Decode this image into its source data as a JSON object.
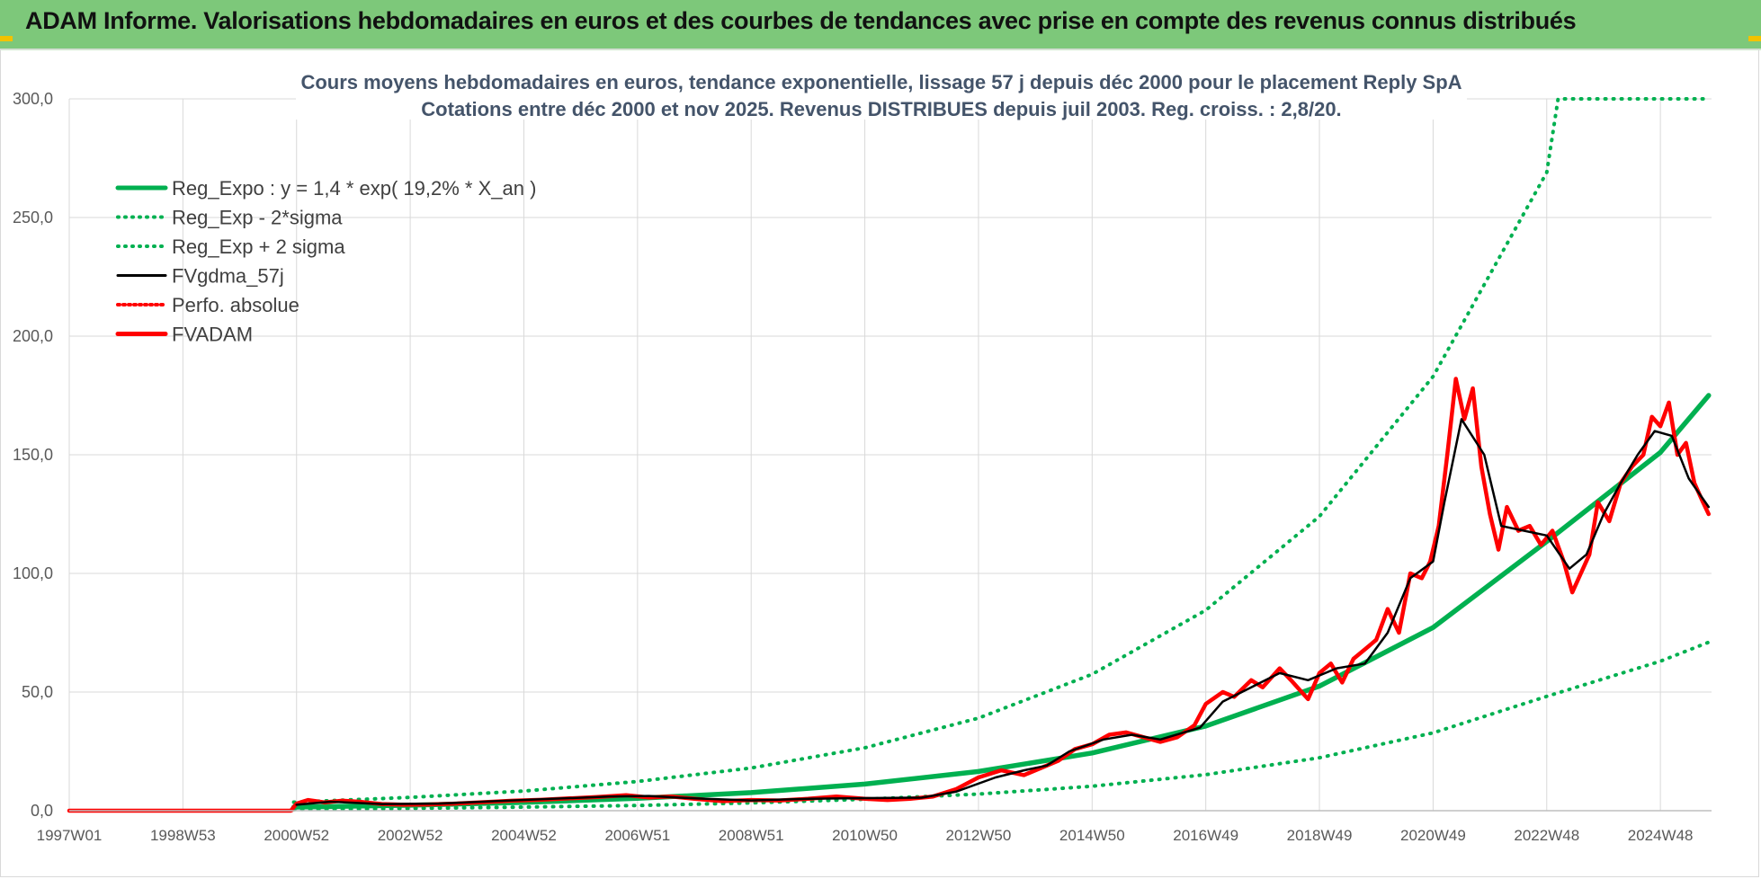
{
  "header": {
    "title": "ADAM Informe. Valorisations hebdomadaires en euros et des courbes de tendances avec prise en compte des revenus connus distribués"
  },
  "colors": {
    "header_bg": "#7dc87a",
    "green": "#00b050",
    "red": "#ff0000",
    "black": "#000000",
    "grid": "#d9d9d9",
    "title": "#44546a"
  },
  "chart_data": {
    "type": "line",
    "title_line1": "Cours moyens hebdomadaires en euros, tendance exponentielle, lissage 57 j depuis déc 2000 pour le placement Reply SpA",
    "title_line2": "Cotations entre déc 2000 et nov 2025. Revenus DISTRIBUES depuis juil 2003. Reg. croiss. : 2,8/20.",
    "ylim": [
      0,
      300
    ],
    "xlim": [
      1997.0,
      2025.9
    ],
    "y_ticks": [
      0,
      50,
      100,
      150,
      200,
      250,
      300
    ],
    "y_tick_labels": [
      "0,0",
      "50,0",
      "100,0",
      "150,0",
      "200,0",
      "250,0",
      "300,0"
    ],
    "x_tick_values": [
      1997.0,
      1999.0,
      2001.0,
      2003.0,
      2005.0,
      2007.0,
      2009.0,
      2011.0,
      2013.0,
      2015.0,
      2017.0,
      2019.0,
      2021.0,
      2023.0,
      2025.0
    ],
    "x_tick_labels": [
      "1997W01",
      "1998W53",
      "2000W52",
      "2002W52",
      "2004W52",
      "2006W51",
      "2008W51",
      "2010W50",
      "2012W50",
      "2014W50",
      "2016W49",
      "2018W49",
      "2020W49",
      "2022W48",
      "2024W48"
    ],
    "legend": [
      {
        "name": "Reg_Expo : y = 1,4 * exp( 19,2% *  X_an )",
        "color": "#00b050",
        "style": "solid-thick"
      },
      {
        "name": "Reg_Exp - 2*sigma",
        "color": "#00b050",
        "style": "dotted"
      },
      {
        "name": "Reg_Exp + 2 sigma",
        "color": "#00b050",
        "style": "dotted"
      },
      {
        "name": "FVgdma_57j",
        "color": "#000000",
        "style": "solid"
      },
      {
        "name": "Perfo. absolue",
        "color": "#ff0000",
        "style": "dotted"
      },
      {
        "name": "FVADAM",
        "color": "#ff0000",
        "style": "solid-thick"
      }
    ],
    "series": [
      {
        "name": "Reg_Expo",
        "x": [
          2000.95,
          2003,
          2005,
          2007,
          2009,
          2011,
          2013,
          2015,
          2017,
          2019,
          2021,
          2023,
          2025,
          2025.85
        ],
        "values": [
          1.5,
          2.3,
          3.5,
          5.2,
          7.6,
          11.2,
          16.5,
          24.3,
          35.7,
          52.5,
          77.2,
          113.5,
          151.0,
          175.0
        ]
      },
      {
        "name": "Reg_Exp - 2*sigma",
        "x": [
          2000.95,
          2003,
          2005,
          2007,
          2009,
          2011,
          2013,
          2015,
          2017,
          2019,
          2021,
          2023,
          2025,
          2025.85
        ],
        "values": [
          0.5,
          1.0,
          1.5,
          2.2,
          3.3,
          4.8,
          7.0,
          10.3,
          15.2,
          22.3,
          32.8,
          48.2,
          63.0,
          71.0
        ]
      },
      {
        "name": "Reg_Exp + 2 sigma",
        "x": [
          2000.95,
          2003,
          2005,
          2007,
          2009,
          2011,
          2013,
          2015,
          2017,
          2019,
          2021,
          2023,
          2023.2,
          2025.85
        ],
        "values": [
          3.6,
          5.6,
          8.3,
          12.3,
          18.0,
          26.5,
          39.0,
          57.5,
          84.5,
          124.0,
          183.0,
          269.0,
          300.0,
          300.0
        ]
      },
      {
        "name": "FVgdma_57j",
        "x": [
          2001.0,
          2001.6,
          2002.5,
          2003.5,
          2004.5,
          2005.5,
          2006.5,
          2007.2,
          2008.0,
          2009.0,
          2010.0,
          2011.0,
          2012.0,
          2012.6,
          2013.3,
          2013.8,
          2014.2,
          2014.6,
          2015.2,
          2015.7,
          2016.2,
          2016.9,
          2017.3,
          2017.8,
          2018.3,
          2018.8,
          2019.3,
          2019.8,
          2020.2,
          2020.6,
          2021.0,
          2021.2,
          2021.5,
          2021.9,
          2022.2,
          2022.6,
          2023.0,
          2023.4,
          2023.7,
          2024.0,
          2024.3,
          2024.6,
          2024.9,
          2025.2,
          2025.5,
          2025.85
        ],
        "values": [
          2.5,
          3.8,
          2.8,
          3.0,
          4.0,
          5.0,
          6.0,
          6.2,
          5.2,
          4.3,
          5.0,
          5.3,
          5.5,
          8.0,
          14.0,
          17.0,
          19.0,
          25.0,
          30.0,
          32.0,
          30.0,
          35.0,
          46.0,
          52.0,
          58.0,
          55.0,
          60.0,
          62.0,
          75.0,
          98.0,
          105.0,
          130.0,
          165.0,
          150.0,
          120.0,
          118.0,
          116.0,
          102.0,
          108.0,
          125.0,
          138.0,
          150.0,
          160.0,
          158.0,
          140.0,
          128.0
        ]
      },
      {
        "name": "Perfo. absolue",
        "x": [
          1997.0,
          2000.95
        ],
        "values": [
          0.0,
          0.0
        ]
      },
      {
        "name": "FVADAM",
        "x": [
          1997.0,
          2000.9,
          2001.0,
          2001.2,
          2001.5,
          2001.8,
          2002.1,
          2002.5,
          2002.9,
          2003.3,
          2003.8,
          2004.3,
          2004.8,
          2005.3,
          2005.8,
          2006.3,
          2006.8,
          2007.2,
          2007.6,
          2008.0,
          2008.5,
          2009.0,
          2009.5,
          2010.0,
          2010.5,
          2011.0,
          2011.4,
          2011.8,
          2012.2,
          2012.6,
          2013.0,
          2013.4,
          2013.8,
          2014.1,
          2014.4,
          2014.7,
          2015.0,
          2015.3,
          2015.6,
          2015.9,
          2016.2,
          2016.5,
          2016.8,
          2017.0,
          2017.3,
          2017.5,
          2017.8,
          2018.0,
          2018.3,
          2018.5,
          2018.8,
          2019.0,
          2019.2,
          2019.4,
          2019.6,
          2019.8,
          2020.0,
          2020.2,
          2020.4,
          2020.6,
          2020.8,
          2020.95,
          2021.1,
          2021.25,
          2021.4,
          2021.55,
          2021.7,
          2021.85,
          2022.0,
          2022.15,
          2022.3,
          2022.5,
          2022.7,
          2022.9,
          2023.1,
          2023.3,
          2023.45,
          2023.6,
          2023.75,
          2023.9,
          2024.1,
          2024.3,
          2024.5,
          2024.7,
          2024.85,
          2025.0,
          2025.15,
          2025.3,
          2025.45,
          2025.6,
          2025.75,
          2025.85
        ],
        "values": [
          0.0,
          0.0,
          3.0,
          4.5,
          3.5,
          4.2,
          3.8,
          2.8,
          2.5,
          2.6,
          3.0,
          3.6,
          4.2,
          4.6,
          5.2,
          5.8,
          6.5,
          5.6,
          6.0,
          5.0,
          4.0,
          4.5,
          4.3,
          5.0,
          6.0,
          5.0,
          4.5,
          5.0,
          6.0,
          9.0,
          14.0,
          17.0,
          15.0,
          18.0,
          21.0,
          26.0,
          28.0,
          32.0,
          33.0,
          31.0,
          29.0,
          31.0,
          36.0,
          45.0,
          50.0,
          48.0,
          55.0,
          52.0,
          60.0,
          55.0,
          47.0,
          58.0,
          62.0,
          54.0,
          64.0,
          68.0,
          72.0,
          85.0,
          75.0,
          100.0,
          98.0,
          105.0,
          120.0,
          150.0,
          182.0,
          165.0,
          178.0,
          145.0,
          125.0,
          110.0,
          128.0,
          118.0,
          120.0,
          112.0,
          118.0,
          105.0,
          92.0,
          100.0,
          108.0,
          130.0,
          122.0,
          138.0,
          145.0,
          150.0,
          166.0,
          162.0,
          172.0,
          150.0,
          155.0,
          138.0,
          130.0,
          125.0
        ]
      }
    ]
  }
}
